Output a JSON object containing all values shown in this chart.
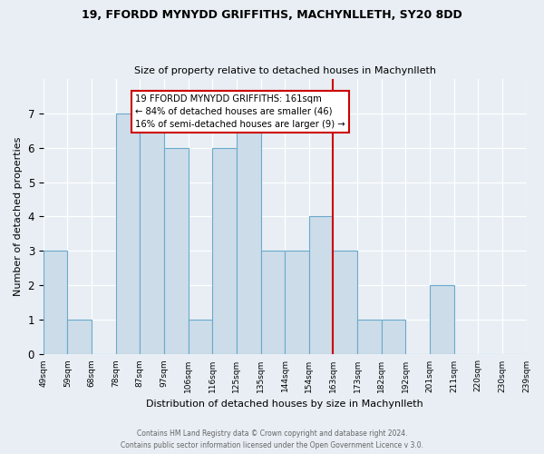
{
  "title1": "19, FFORDD MYNYDD GRIFFITHS, MACHYNLLETH, SY20 8DD",
  "title2": "Size of property relative to detached houses in Machynlleth",
  "xlabel": "Distribution of detached houses by size in Machynlleth",
  "ylabel": "Number of detached properties",
  "bins": [
    "49sqm",
    "59sqm",
    "68sqm",
    "78sqm",
    "87sqm",
    "97sqm",
    "106sqm",
    "116sqm",
    "125sqm",
    "135sqm",
    "144sqm",
    "154sqm",
    "163sqm",
    "173sqm",
    "182sqm",
    "192sqm",
    "201sqm",
    "211sqm",
    "220sqm",
    "230sqm",
    "239sqm"
  ],
  "heights": [
    3,
    1,
    0,
    7,
    7,
    6,
    1,
    6,
    7,
    3,
    3,
    4,
    3,
    1,
    1,
    0,
    2,
    0,
    0,
    0
  ],
  "bar_color": "#ccdce8",
  "bar_edge_color": "#6aaace",
  "vline_color": "#cc0000",
  "vline_bin_index": 12,
  "annotation_title": "19 FFORDD MYNYDD GRIFFITHS: 161sqm",
  "annotation_line2": "← 84% of detached houses are smaller (46)",
  "annotation_line3": "16% of semi-detached houses are larger (9) →",
  "annotation_box_color": "#ffffff",
  "annotation_border_color": "#cc0000",
  "footer1": "Contains HM Land Registry data © Crown copyright and database right 2024.",
  "footer2": "Contains public sector information licensed under the Open Government Licence v 3.0.",
  "ylim": [
    0,
    8
  ],
  "yticks": [
    0,
    1,
    2,
    3,
    4,
    5,
    6,
    7
  ],
  "background_color": "#e8eef4"
}
